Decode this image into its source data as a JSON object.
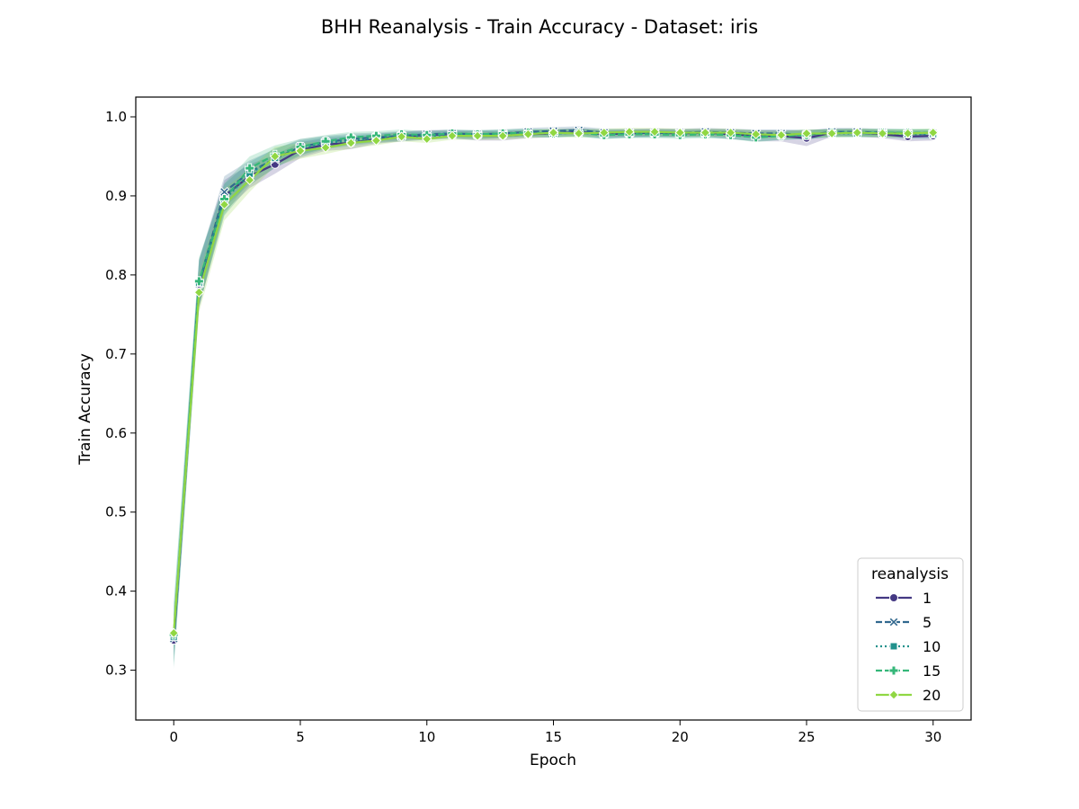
{
  "chart_data": {
    "type": "line",
    "title": "BHH Reanalysis - Train Accuracy - Dataset: iris",
    "xlabel": "Epoch",
    "ylabel": "Train Accuracy",
    "xlim": [
      -1.5,
      31.5
    ],
    "ylim": [
      0.237,
      1.025
    ],
    "xticks": [
      0,
      5,
      10,
      15,
      20,
      25,
      30
    ],
    "yticks": [
      0.3,
      0.4,
      0.5,
      0.6,
      0.7,
      0.8,
      0.9,
      1.0
    ],
    "xtick_labels": [
      "0",
      "5",
      "10",
      "15",
      "20",
      "25",
      "30"
    ],
    "ytick_labels": [
      "0.3",
      "0.4",
      "0.5",
      "0.6",
      "0.7",
      "0.8",
      "0.9",
      "1.0"
    ],
    "legend": {
      "title": "reanalysis",
      "placement": "bottom-right"
    },
    "x": [
      0,
      1,
      2,
      3,
      4,
      5,
      6,
      7,
      8,
      9,
      10,
      11,
      12,
      13,
      14,
      15,
      16,
      17,
      18,
      19,
      20,
      21,
      22,
      23,
      24,
      25,
      26,
      27,
      28,
      29,
      30
    ],
    "series": [
      {
        "name": "1",
        "color": "#443983",
        "marker": "circle",
        "dash": "solid",
        "values": [
          0.338,
          0.788,
          0.9,
          0.925,
          0.94,
          0.958,
          0.965,
          0.967,
          0.972,
          0.975,
          0.977,
          0.978,
          0.976,
          0.976,
          0.978,
          0.979,
          0.981,
          0.978,
          0.979,
          0.98,
          0.979,
          0.98,
          0.978,
          0.976,
          0.976,
          0.973,
          0.98,
          0.98,
          0.978,
          0.975,
          0.976
        ],
        "band": [
          0.02,
          0.03,
          0.02,
          0.015,
          0.012,
          0.01,
          0.008,
          0.008,
          0.006,
          0.006,
          0.006,
          0.005,
          0.006,
          0.006,
          0.005,
          0.005,
          0.005,
          0.005,
          0.005,
          0.005,
          0.005,
          0.005,
          0.006,
          0.007,
          0.007,
          0.01,
          0.005,
          0.005,
          0.005,
          0.006,
          0.006
        ]
      },
      {
        "name": "5",
        "color": "#31688e",
        "marker": "x",
        "dash": "dashed",
        "values": [
          0.34,
          0.789,
          0.905,
          0.93,
          0.947,
          0.962,
          0.968,
          0.972,
          0.974,
          0.976,
          0.978,
          0.979,
          0.978,
          0.979,
          0.981,
          0.982,
          0.983,
          0.98,
          0.98,
          0.98,
          0.98,
          0.981,
          0.98,
          0.979,
          0.979,
          0.977,
          0.981,
          0.981,
          0.98,
          0.979,
          0.979
        ],
        "band": [
          0.03,
          0.03,
          0.02,
          0.015,
          0.012,
          0.01,
          0.008,
          0.007,
          0.006,
          0.006,
          0.005,
          0.005,
          0.005,
          0.005,
          0.005,
          0.005,
          0.005,
          0.005,
          0.005,
          0.005,
          0.005,
          0.005,
          0.005,
          0.005,
          0.005,
          0.006,
          0.005,
          0.005,
          0.005,
          0.005,
          0.005
        ]
      },
      {
        "name": "10",
        "color": "#21918c",
        "marker": "square",
        "dash": "dotted",
        "values": [
          0.342,
          0.79,
          0.895,
          0.928,
          0.948,
          0.96,
          0.967,
          0.97,
          0.973,
          0.975,
          0.976,
          0.977,
          0.977,
          0.978,
          0.979,
          0.979,
          0.98,
          0.978,
          0.979,
          0.979,
          0.979,
          0.979,
          0.978,
          0.976,
          0.977,
          0.978,
          0.979,
          0.979,
          0.979,
          0.978,
          0.978
        ],
        "band": [
          0.04,
          0.03,
          0.02,
          0.015,
          0.012,
          0.01,
          0.008,
          0.007,
          0.006,
          0.006,
          0.005,
          0.005,
          0.006,
          0.005,
          0.005,
          0.005,
          0.005,
          0.006,
          0.005,
          0.005,
          0.005,
          0.005,
          0.006,
          0.007,
          0.006,
          0.006,
          0.005,
          0.005,
          0.005,
          0.006,
          0.006
        ]
      },
      {
        "name": "15",
        "color": "#35b779",
        "marker": "plus",
        "dash": "dashed",
        "values": [
          0.345,
          0.792,
          0.896,
          0.935,
          0.952,
          0.962,
          0.969,
          0.974,
          0.976,
          0.978,
          0.977,
          0.979,
          0.978,
          0.979,
          0.98,
          0.979,
          0.98,
          0.977,
          0.978,
          0.978,
          0.977,
          0.978,
          0.977,
          0.974,
          0.976,
          0.977,
          0.98,
          0.98,
          0.98,
          0.98,
          0.98
        ],
        "band": [
          0.04,
          0.03,
          0.02,
          0.015,
          0.012,
          0.01,
          0.008,
          0.007,
          0.006,
          0.006,
          0.005,
          0.005,
          0.005,
          0.005,
          0.005,
          0.005,
          0.005,
          0.005,
          0.005,
          0.005,
          0.005,
          0.005,
          0.005,
          0.006,
          0.005,
          0.005,
          0.005,
          0.005,
          0.005,
          0.005,
          0.005
        ]
      },
      {
        "name": "20",
        "color": "#90d743",
        "marker": "diamond",
        "dash": "solid",
        "values": [
          0.347,
          0.778,
          0.889,
          0.92,
          0.95,
          0.957,
          0.961,
          0.967,
          0.97,
          0.975,
          0.972,
          0.976,
          0.976,
          0.976,
          0.978,
          0.98,
          0.979,
          0.98,
          0.981,
          0.981,
          0.98,
          0.98,
          0.98,
          0.978,
          0.977,
          0.979,
          0.979,
          0.98,
          0.979,
          0.979,
          0.98
        ],
        "band": [
          0.02,
          0.025,
          0.02,
          0.015,
          0.012,
          0.01,
          0.008,
          0.007,
          0.006,
          0.006,
          0.005,
          0.005,
          0.005,
          0.005,
          0.005,
          0.005,
          0.005,
          0.005,
          0.005,
          0.005,
          0.005,
          0.005,
          0.005,
          0.005,
          0.005,
          0.005,
          0.005,
          0.005,
          0.005,
          0.005,
          0.005
        ]
      }
    ]
  }
}
